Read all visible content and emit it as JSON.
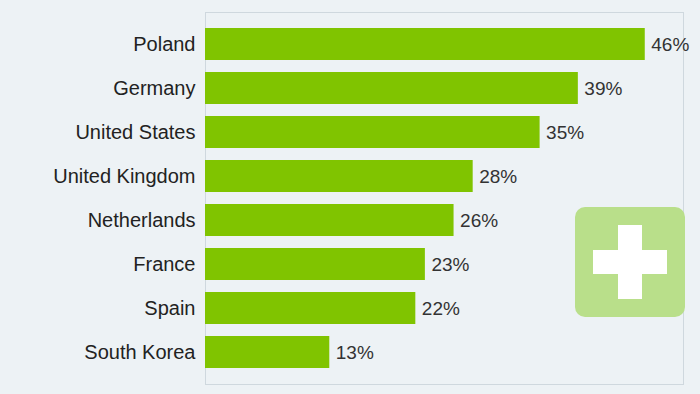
{
  "chart_data": {
    "type": "bar",
    "orientation": "horizontal",
    "categories": [
      "Poland",
      "Germany",
      "United States",
      "United Kingdom",
      "Netherlands",
      "France",
      "Spain",
      "South Korea"
    ],
    "values": [
      46,
      39,
      35,
      28,
      26,
      23,
      22,
      13
    ],
    "value_labels": [
      "46%",
      "39%",
      "35%",
      "28%",
      "26%",
      "23%",
      "22%",
      "13%"
    ],
    "color": "#80c400",
    "xlim": [
      0,
      50
    ],
    "xticks": [],
    "data_labels": true,
    "tick_labels": "y",
    "grid": false
  }
}
